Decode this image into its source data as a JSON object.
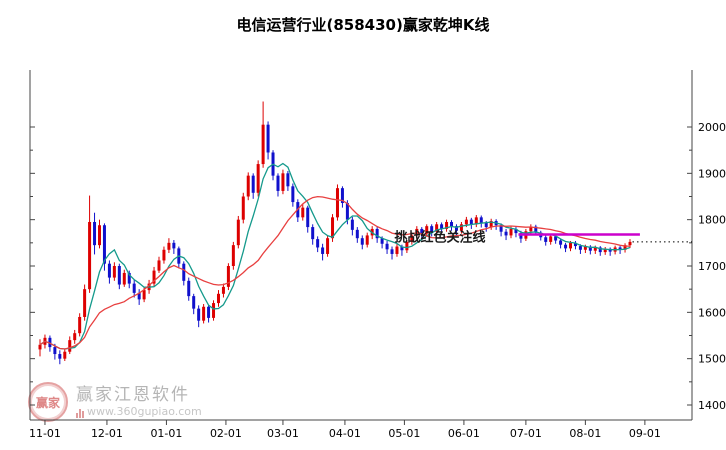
{
  "title": "电信运营行业(858430)赢家乾坤K线",
  "watermark": {
    "logo_text": "赢家",
    "name": "赢家江恩软件",
    "url": "www.360gupiao.com"
  },
  "chart_data": {
    "type": "candlestick",
    "title": "电信运营行业(858430)赢家乾坤K线",
    "grid": false,
    "ylim": [
      1368,
      2112
    ],
    "y_ticks": [
      1400,
      1500,
      1600,
      1700,
      1800,
      1900,
      2000
    ],
    "x_ticks": [
      [
        "11-01",
        1
      ],
      [
        "12-01",
        13.5
      ],
      [
        "01-01",
        25.5
      ],
      [
        "02-01",
        37.5
      ],
      [
        "03-01",
        49
      ],
      [
        "04-01",
        61.5
      ],
      [
        "05-01",
        73.5
      ],
      [
        "06-01",
        85.5
      ],
      [
        "07-01",
        98
      ],
      [
        "08-01",
        110
      ],
      [
        "09-01",
        122
      ]
    ],
    "up_color": "#dd0000",
    "down_color": "#1010cc",
    "ma_lines": [
      {
        "name": "fast",
        "window": 6,
        "color": "#159a8c"
      },
      {
        "name": "slow",
        "window": 18,
        "color": "#e84040"
      }
    ],
    "support_line": {
      "price": 1768,
      "start_idx": 96.5,
      "end_idx": 121,
      "color": "#cc00cc"
    },
    "last_price_line": {
      "price": 1752,
      "color": "#000000"
    },
    "annotation": {
      "text": "挑战红色关注线",
      "idx": 71.5,
      "price": 1762,
      "color": "#1a1a1a"
    },
    "candles": [
      [
        1520,
        1542,
        1505,
        1530
      ],
      [
        1530,
        1552,
        1522,
        1545
      ],
      [
        1545,
        1550,
        1515,
        1525
      ],
      [
        1525,
        1532,
        1498,
        1510
      ],
      [
        1510,
        1518,
        1488,
        1500
      ],
      [
        1500,
        1522,
        1495,
        1515
      ],
      [
        1515,
        1548,
        1510,
        1540
      ],
      [
        1540,
        1562,
        1532,
        1555
      ],
      [
        1555,
        1598,
        1548,
        1590
      ],
      [
        1590,
        1660,
        1582,
        1650
      ],
      [
        1650,
        1852,
        1642,
        1795
      ],
      [
        1795,
        1815,
        1725,
        1745
      ],
      [
        1745,
        1800,
        1738,
        1788
      ],
      [
        1788,
        1792,
        1690,
        1705
      ],
      [
        1705,
        1712,
        1662,
        1675
      ],
      [
        1675,
        1708,
        1668,
        1700
      ],
      [
        1700,
        1705,
        1650,
        1660
      ],
      [
        1660,
        1692,
        1655,
        1685
      ],
      [
        1685,
        1690,
        1652,
        1662
      ],
      [
        1662,
        1670,
        1632,
        1642
      ],
      [
        1642,
        1650,
        1616,
        1628
      ],
      [
        1628,
        1655,
        1622,
        1648
      ],
      [
        1648,
        1670,
        1640,
        1662
      ],
      [
        1662,
        1698,
        1655,
        1690
      ],
      [
        1690,
        1720,
        1685,
        1712
      ],
      [
        1712,
        1742,
        1705,
        1735
      ],
      [
        1735,
        1760,
        1728,
        1750
      ],
      [
        1750,
        1756,
        1726,
        1738
      ],
      [
        1738,
        1742,
        1695,
        1705
      ],
      [
        1705,
        1710,
        1658,
        1668
      ],
      [
        1668,
        1675,
        1625,
        1635
      ],
      [
        1635,
        1640,
        1596,
        1608
      ],
      [
        1608,
        1615,
        1568,
        1582
      ],
      [
        1582,
        1618,
        1576,
        1612
      ],
      [
        1612,
        1616,
        1578,
        1588
      ],
      [
        1588,
        1626,
        1582,
        1620
      ],
      [
        1620,
        1648,
        1612,
        1640
      ],
      [
        1640,
        1662,
        1632,
        1655
      ],
      [
        1655,
        1706,
        1648,
        1700
      ],
      [
        1700,
        1752,
        1692,
        1745
      ],
      [
        1745,
        1808,
        1738,
        1800
      ],
      [
        1800,
        1858,
        1792,
        1850
      ],
      [
        1850,
        1902,
        1842,
        1895
      ],
      [
        1895,
        1900,
        1845,
        1858
      ],
      [
        1858,
        1928,
        1850,
        1920
      ],
      [
        1920,
        2055,
        1912,
        2005
      ],
      [
        2005,
        2012,
        1930,
        1945
      ],
      [
        1945,
        1950,
        1885,
        1895
      ],
      [
        1895,
        1900,
        1850,
        1862
      ],
      [
        1862,
        1908,
        1855,
        1900
      ],
      [
        1900,
        1905,
        1862,
        1872
      ],
      [
        1872,
        1878,
        1828,
        1838
      ],
      [
        1838,
        1844,
        1795,
        1805
      ],
      [
        1805,
        1834,
        1798,
        1826
      ],
      [
        1826,
        1830,
        1772,
        1784
      ],
      [
        1784,
        1790,
        1746,
        1758
      ],
      [
        1758,
        1764,
        1730,
        1740
      ],
      [
        1740,
        1748,
        1712,
        1726
      ],
      [
        1726,
        1766,
        1720,
        1760
      ],
      [
        1760,
        1812,
        1752,
        1805
      ],
      [
        1805,
        1876,
        1798,
        1868
      ],
      [
        1868,
        1872,
        1826,
        1836
      ],
      [
        1836,
        1842,
        1790,
        1800
      ],
      [
        1800,
        1806,
        1766,
        1778
      ],
      [
        1778,
        1784,
        1750,
        1760
      ],
      [
        1760,
        1766,
        1736,
        1746
      ],
      [
        1746,
        1772,
        1740,
        1766
      ],
      [
        1766,
        1786,
        1758,
        1780
      ],
      [
        1780,
        1784,
        1750,
        1760
      ],
      [
        1760,
        1764,
        1738,
        1748
      ],
      [
        1748,
        1754,
        1726,
        1736
      ],
      [
        1736,
        1742,
        1714,
        1726
      ],
      [
        1726,
        1748,
        1720,
        1742
      ],
      [
        1742,
        1746,
        1722,
        1734
      ],
      [
        1734,
        1756,
        1728,
        1752
      ],
      [
        1752,
        1772,
        1746,
        1766
      ],
      [
        1766,
        1786,
        1760,
        1780
      ],
      [
        1780,
        1784,
        1760,
        1770
      ],
      [
        1770,
        1790,
        1764,
        1786
      ],
      [
        1786,
        1790,
        1764,
        1774
      ],
      [
        1774,
        1795,
        1768,
        1790
      ],
      [
        1790,
        1794,
        1770,
        1780
      ],
      [
        1780,
        1800,
        1774,
        1795
      ],
      [
        1795,
        1799,
        1776,
        1786
      ],
      [
        1786,
        1790,
        1766,
        1776
      ],
      [
        1776,
        1795,
        1770,
        1790
      ],
      [
        1790,
        1806,
        1784,
        1800
      ],
      [
        1800,
        1804,
        1780,
        1790
      ],
      [
        1790,
        1810,
        1784,
        1805
      ],
      [
        1805,
        1809,
        1783,
        1793
      ],
      [
        1793,
        1797,
        1774,
        1784
      ],
      [
        1784,
        1802,
        1778,
        1797
      ],
      [
        1797,
        1801,
        1778,
        1788
      ],
      [
        1788,
        1792,
        1764,
        1774
      ],
      [
        1774,
        1780,
        1756,
        1766
      ],
      [
        1766,
        1785,
        1760,
        1780
      ],
      [
        1780,
        1784,
        1762,
        1771
      ],
      [
        1771,
        1776,
        1750,
        1759
      ],
      [
        1759,
        1780,
        1754,
        1775
      ],
      [
        1775,
        1790,
        1769,
        1785
      ],
      [
        1785,
        1789,
        1766,
        1772
      ],
      [
        1772,
        1776,
        1755,
        1762
      ],
      [
        1762,
        1766,
        1744,
        1752
      ],
      [
        1752,
        1768,
        1746,
        1764
      ],
      [
        1764,
        1768,
        1748,
        1755
      ],
      [
        1755,
        1759,
        1738,
        1746
      ],
      [
        1746,
        1750,
        1730,
        1738
      ],
      [
        1738,
        1754,
        1732,
        1750
      ],
      [
        1750,
        1754,
        1736,
        1743
      ],
      [
        1743,
        1747,
        1726,
        1735
      ],
      [
        1735,
        1746,
        1728,
        1742
      ],
      [
        1742,
        1745,
        1725,
        1733
      ],
      [
        1733,
        1744,
        1726,
        1740
      ],
      [
        1740,
        1743,
        1722,
        1730
      ],
      [
        1730,
        1741,
        1724,
        1737
      ],
      [
        1737,
        1740,
        1722,
        1731
      ],
      [
        1731,
        1744,
        1725,
        1740
      ],
      [
        1740,
        1743,
        1726,
        1735
      ],
      [
        1735,
        1749,
        1729,
        1745
      ],
      [
        1745,
        1758,
        1739,
        1752
      ]
    ]
  }
}
